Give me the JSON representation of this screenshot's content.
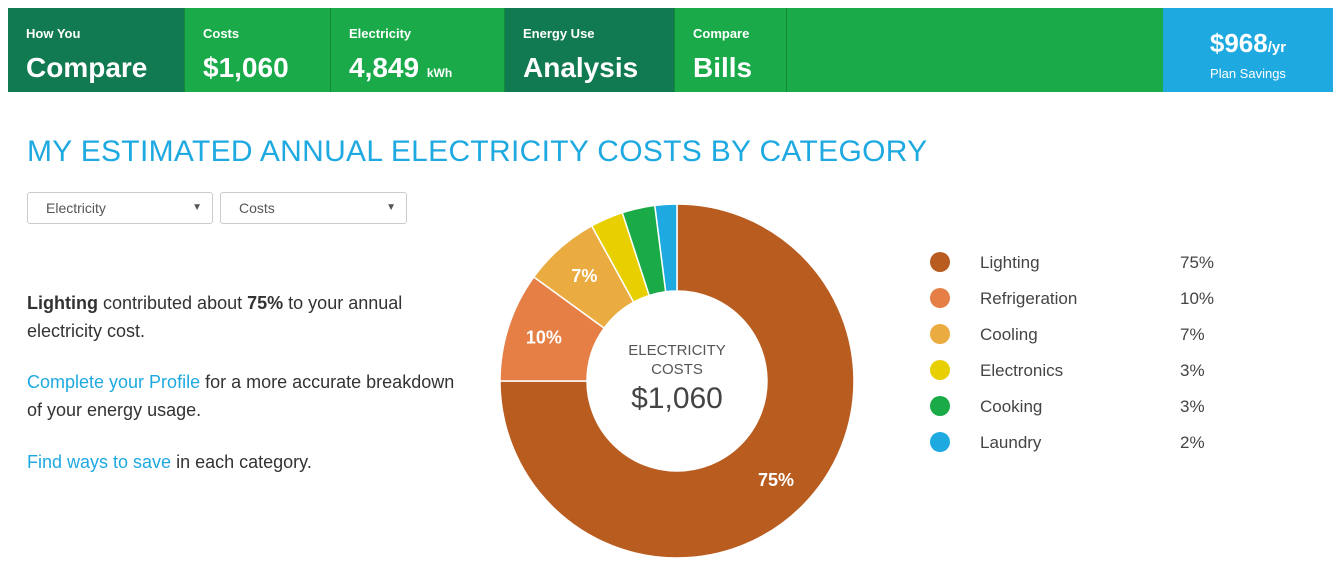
{
  "nav": {
    "tabs": [
      {
        "small": "How You",
        "big": "Compare"
      },
      {
        "small": "Costs",
        "big": "$1,060"
      },
      {
        "small": "Electricity",
        "big": "4,849",
        "unit": "kWh"
      },
      {
        "small": "Energy Use",
        "big": "Analysis"
      },
      {
        "small": "Compare",
        "big": "Bills"
      }
    ],
    "savings": {
      "amount": "$968",
      "unit": "/yr",
      "label": "Plan Savings"
    }
  },
  "title": "MY ESTIMATED ANNUAL ELECTRICITY COSTS BY CATEGORY",
  "dropdowns": [
    "Electricity",
    "Costs"
  ],
  "summary": {
    "category": "Lighting",
    "text1": "contributed about",
    "share": "75%",
    "text2": "to your annual electricity cost."
  },
  "profile": {
    "link": "Complete your Profile",
    "text": "for a more accurate breakdown of your energy usage."
  },
  "save": {
    "link": "Find ways to save",
    "text": "in each category."
  },
  "chart_data": {
    "type": "donut",
    "categories": [
      "Lighting",
      "Refrigeration",
      "Cooling",
      "Electronics",
      "Cooking",
      "Laundry"
    ],
    "values": [
      75,
      10,
      7,
      3,
      3,
      2
    ],
    "value_labels": [
      "75%",
      "10%",
      "7%",
      "3%",
      "3%",
      "2%"
    ],
    "colors": [
      "#b85c20",
      "#e57f45",
      "#eaac40",
      "#e8d000",
      "#1aaa48",
      "#1ea9e1"
    ],
    "center_label": "ELECTRICITY COSTS",
    "center_value": "$1,060"
  }
}
